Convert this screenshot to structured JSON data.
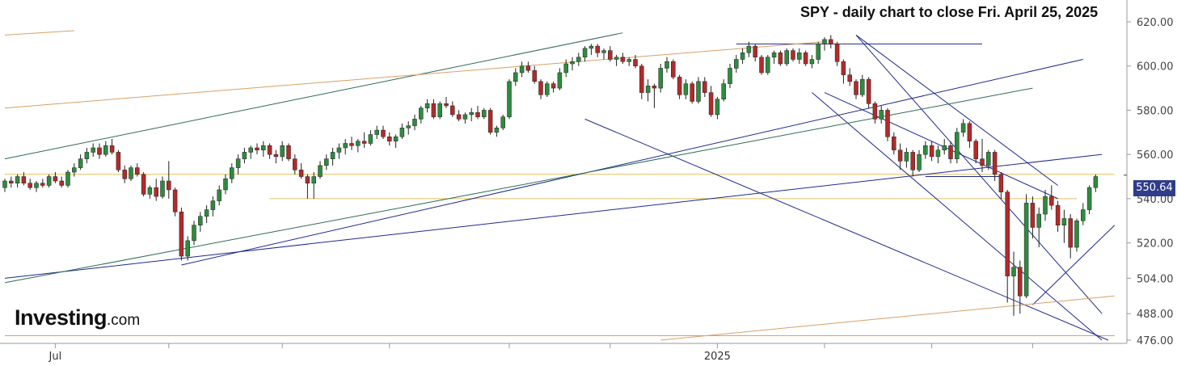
{
  "chart_data": {
    "type": "candlestick",
    "title": "SPY - daily chart to close Fri. April 25, 2025",
    "last_price_label": "550.64",
    "last_price": 550.64,
    "ylim": [
      476,
      622
    ],
    "y_ticks": [
      {
        "value": 476,
        "label": "476.00"
      },
      {
        "value": 488,
        "label": "488.00"
      },
      {
        "value": 504,
        "label": "504.00"
      },
      {
        "value": 520,
        "label": "520.00"
      },
      {
        "value": 540,
        "label": "540.00"
      },
      {
        "value": 560,
        "label": "560.00"
      },
      {
        "value": 580,
        "label": "580.00"
      },
      {
        "value": 600,
        "label": "600.00"
      },
      {
        "value": 620,
        "label": "620.00"
      }
    ],
    "x_tick_labels": [
      "Jul",
      "2025"
    ],
    "grid": false,
    "colors": {
      "up": "#2e8b3e",
      "down": "#b22a2a",
      "trend_blue": "#1f2a8c",
      "trend_green": "#2f6b55",
      "trend_orange": "#d9a066",
      "horizontal_yellow": "#e0c060"
    },
    "candles": [
      [
        545,
        549,
        543,
        548
      ],
      [
        548,
        550,
        545,
        547
      ],
      [
        547,
        551,
        545,
        550
      ],
      [
        550,
        552,
        546,
        547
      ],
      [
        547,
        549,
        544,
        545
      ],
      [
        545,
        548,
        543,
        547
      ],
      [
        547,
        549,
        545,
        546
      ],
      [
        546,
        551,
        545,
        550
      ],
      [
        550,
        552,
        547,
        548
      ],
      [
        548,
        550,
        545,
        546
      ],
      [
        546,
        553,
        545,
        552
      ],
      [
        552,
        556,
        550,
        554
      ],
      [
        554,
        560,
        553,
        558
      ],
      [
        558,
        563,
        556,
        561
      ],
      [
        561,
        565,
        559,
        563
      ],
      [
        563,
        565,
        558,
        560
      ],
      [
        560,
        566,
        559,
        564
      ],
      [
        564,
        567,
        560,
        561
      ],
      [
        561,
        562,
        552,
        553
      ],
      [
        553,
        555,
        547,
        549
      ],
      [
        549,
        555,
        548,
        554
      ],
      [
        554,
        556,
        550,
        551
      ],
      [
        551,
        552,
        541,
        542
      ],
      [
        542,
        546,
        540,
        545
      ],
      [
        545,
        549,
        539,
        541
      ],
      [
        541,
        550,
        540,
        548
      ],
      [
        548,
        557,
        540,
        544
      ],
      [
        544,
        545,
        532,
        534
      ],
      [
        534,
        536,
        512,
        514
      ],
      [
        514,
        523,
        512,
        521
      ],
      [
        521,
        530,
        519,
        528
      ],
      [
        528,
        534,
        525,
        532
      ],
      [
        532,
        537,
        529,
        535
      ],
      [
        535,
        541,
        532,
        539
      ],
      [
        539,
        546,
        537,
        544
      ],
      [
        544,
        551,
        542,
        549
      ],
      [
        549,
        556,
        547,
        554
      ],
      [
        554,
        560,
        551,
        558
      ],
      [
        558,
        563,
        556,
        561
      ],
      [
        561,
        564,
        558,
        563
      ],
      [
        563,
        565,
        560,
        562
      ],
      [
        562,
        566,
        559,
        564
      ],
      [
        564,
        565,
        558,
        560
      ],
      [
        560,
        562,
        556,
        559
      ],
      [
        559,
        566,
        557,
        564
      ],
      [
        564,
        565,
        557,
        558
      ],
      [
        558,
        560,
        551,
        553
      ],
      [
        553,
        556,
        549,
        550
      ],
      [
        550,
        551,
        540,
        547
      ],
      [
        547,
        552,
        540,
        550
      ],
      [
        550,
        557,
        549,
        555
      ],
      [
        555,
        560,
        553,
        558
      ],
      [
        558,
        563,
        555,
        561
      ],
      [
        561,
        565,
        558,
        563
      ],
      [
        563,
        567,
        560,
        565
      ],
      [
        565,
        568,
        562,
        564
      ],
      [
        564,
        567,
        561,
        566
      ],
      [
        566,
        570,
        563,
        565
      ],
      [
        565,
        571,
        564,
        569
      ],
      [
        569,
        573,
        567,
        571
      ],
      [
        571,
        573,
        567,
        568
      ],
      [
        568,
        570,
        564,
        566
      ],
      [
        566,
        569,
        563,
        568
      ],
      [
        568,
        574,
        567,
        572
      ],
      [
        572,
        575,
        569,
        573
      ],
      [
        573,
        578,
        571,
        576
      ],
      [
        576,
        582,
        574,
        581
      ],
      [
        581,
        585,
        579,
        583
      ],
      [
        583,
        585,
        576,
        577
      ],
      [
        577,
        584,
        576,
        583
      ],
      [
        583,
        586,
        581,
        582
      ],
      [
        582,
        584,
        577,
        578
      ],
      [
        578,
        580,
        575,
        576
      ],
      [
        576,
        579,
        574,
        578
      ],
      [
        578,
        581,
        575,
        579
      ],
      [
        579,
        582,
        576,
        577
      ],
      [
        577,
        581,
        576,
        580
      ],
      [
        580,
        581,
        569,
        570
      ],
      [
        570,
        573,
        568,
        572
      ],
      [
        572,
        578,
        571,
        577
      ],
      [
        577,
        594,
        576,
        593
      ],
      [
        593,
        599,
        591,
        597
      ],
      [
        597,
        602,
        595,
        600
      ],
      [
        600,
        602,
        597,
        598
      ],
      [
        598,
        600,
        592,
        593
      ],
      [
        593,
        594,
        585,
        587
      ],
      [
        587,
        593,
        586,
        592
      ],
      [
        592,
        593,
        588,
        590
      ],
      [
        590,
        599,
        589,
        597
      ],
      [
        597,
        603,
        595,
        601
      ],
      [
        601,
        604,
        598,
        602
      ],
      [
        602,
        606,
        600,
        604
      ],
      [
        604,
        609,
        602,
        608
      ],
      [
        608,
        610,
        605,
        609
      ],
      [
        609,
        610,
        604,
        606
      ],
      [
        606,
        608,
        603,
        607
      ],
      [
        607,
        609,
        602,
        603
      ],
      [
        603,
        605,
        600,
        604
      ],
      [
        604,
        606,
        601,
        602
      ],
      [
        602,
        604,
        600,
        603
      ],
      [
        603,
        605,
        599,
        600
      ],
      [
        600,
        601,
        585,
        588
      ],
      [
        588,
        594,
        584,
        591
      ],
      [
        591,
        592,
        581,
        590
      ],
      [
        590,
        601,
        588,
        599
      ],
      [
        599,
        604,
        597,
        602
      ],
      [
        602,
        603,
        594,
        595
      ],
      [
        595,
        596,
        585,
        587
      ],
      [
        587,
        594,
        585,
        592
      ],
      [
        592,
        593,
        583,
        584
      ],
      [
        584,
        595,
        583,
        593
      ],
      [
        593,
        595,
        586,
        588
      ],
      [
        588,
        591,
        577,
        578
      ],
      [
        578,
        586,
        576,
        585
      ],
      [
        585,
        594,
        584,
        592
      ],
      [
        592,
        601,
        590,
        599
      ],
      [
        599,
        605,
        597,
        603
      ],
      [
        603,
        608,
        601,
        606
      ],
      [
        606,
        611,
        604,
        609
      ],
      [
        609,
        610,
        602,
        604
      ],
      [
        604,
        605,
        596,
        597
      ],
      [
        597,
        605,
        596,
        604
      ],
      [
        604,
        607,
        601,
        606
      ],
      [
        606,
        607,
        600,
        601
      ],
      [
        601,
        608,
        600,
        607
      ],
      [
        607,
        608,
        602,
        603
      ],
      [
        603,
        608,
        601,
        606
      ],
      [
        606,
        607,
        600,
        601
      ],
      [
        601,
        605,
        599,
        603
      ],
      [
        603,
        611,
        601,
        610
      ],
      [
        610,
        613,
        607,
        612
      ],
      [
        612,
        614,
        608,
        610
      ],
      [
        610,
        611,
        600,
        602
      ],
      [
        602,
        603,
        592,
        596
      ],
      [
        596,
        599,
        591,
        593
      ],
      [
        593,
        594,
        585,
        587
      ],
      [
        587,
        596,
        586,
        594
      ],
      [
        594,
        595,
        581,
        583
      ],
      [
        583,
        584,
        574,
        576
      ],
      [
        576,
        582,
        574,
        580
      ],
      [
        580,
        581,
        566,
        568
      ],
      [
        568,
        570,
        560,
        562
      ],
      [
        562,
        565,
        553,
        557
      ],
      [
        557,
        563,
        554,
        561
      ],
      [
        561,
        562,
        550,
        553
      ],
      [
        553,
        562,
        552,
        560
      ],
      [
        560,
        566,
        558,
        564
      ],
      [
        564,
        566,
        557,
        559
      ],
      [
        559,
        564,
        556,
        562
      ],
      [
        562,
        567,
        560,
        564
      ],
      [
        564,
        566,
        556,
        558
      ],
      [
        558,
        572,
        556,
        570
      ],
      [
        570,
        576,
        568,
        574
      ],
      [
        574,
        575,
        563,
        566
      ],
      [
        566,
        567,
        556,
        558
      ],
      [
        558,
        567,
        552,
        555
      ],
      [
        555,
        562,
        553,
        561
      ],
      [
        561,
        562,
        548,
        551
      ],
      [
        551,
        552,
        540,
        543
      ],
      [
        543,
        544,
        493,
        505
      ],
      [
        505,
        516,
        487,
        509
      ],
      [
        509,
        512,
        488,
        496
      ],
      [
        496,
        542,
        495,
        538
      ],
      [
        538,
        541,
        522,
        527
      ],
      [
        527,
        536,
        518,
        533
      ],
      [
        533,
        544,
        530,
        541
      ],
      [
        541,
        546,
        535,
        537
      ],
      [
        537,
        539,
        525,
        528
      ],
      [
        528,
        535,
        520,
        531
      ],
      [
        531,
        533,
        513,
        518
      ],
      [
        518,
        531,
        516,
        530
      ],
      [
        530,
        538,
        528,
        535
      ],
      [
        535,
        546,
        533,
        545
      ],
      [
        545,
        551,
        543,
        550
      ]
    ],
    "trendlines": [
      {
        "color": "blue",
        "from": [
          0,
          504
        ],
        "to": [
          174,
          560
        ]
      },
      {
        "color": "blue",
        "from": [
          28,
          510
        ],
        "to": [
          171,
          603
        ]
      },
      {
        "color": "blue",
        "from": [
          92,
          576
        ],
        "to": [
          175,
          476
        ]
      },
      {
        "color": "blue",
        "from": [
          128,
          588
        ],
        "to": [
          174,
          476
        ]
      },
      {
        "color": "blue",
        "from": [
          130,
          588
        ],
        "to": [
          167,
          540
        ]
      },
      {
        "color": "blue",
        "from": [
          135,
          614
        ],
        "to": [
          167,
          546
        ]
      },
      {
        "color": "blue",
        "from": [
          135,
          614
        ],
        "to": [
          174,
          488
        ]
      },
      {
        "color": "blue",
        "from": [
          163,
          492
        ],
        "to": [
          176,
          528
        ]
      },
      {
        "color": "blue",
        "from": [
          116,
          610
        ],
        "to": [
          155,
          610
        ]
      },
      {
        "color": "blue",
        "from": [
          146,
          550
        ],
        "to": [
          158,
          550
        ]
      },
      {
        "color": "green",
        "from": [
          0,
          502
        ],
        "to": [
          163,
          590
        ]
      },
      {
        "color": "green",
        "from": [
          0,
          558
        ],
        "to": [
          98,
          615
        ]
      },
      {
        "color": "orange",
        "from": [
          0,
          581
        ],
        "to": [
          130,
          611
        ]
      },
      {
        "color": "orange",
        "from": [
          0,
          614
        ],
        "to": [
          11,
          616
        ]
      },
      {
        "color": "orange",
        "from": [
          104,
          476
        ],
        "to": [
          176,
          496
        ]
      }
    ],
    "hlines": [
      {
        "value": 551,
        "color": "yellow",
        "from": 0,
        "to": 176
      },
      {
        "value": 540,
        "color": "yellow",
        "from": 42,
        "to": 170
      },
      {
        "value": 478,
        "color": "orange",
        "from": 0,
        "to": 176
      }
    ]
  },
  "branding": {
    "logo_main": "Investing",
    "logo_suffix": ".com"
  }
}
